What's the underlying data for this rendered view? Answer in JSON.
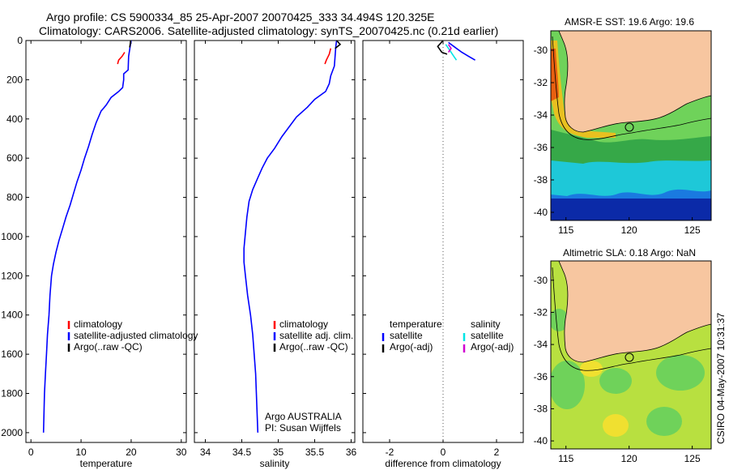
{
  "title": {
    "line1": "Argo profile: CS 5900334_85 25-Apr-2007 20070425_333 34.494S 120.325E",
    "line2": "Climatology: CARS2006. Satellite-adjusted climatology: synTS_20070425.nc (0.21d earlier)"
  },
  "stamp": "CSIRO 04-May-2007 10:31:37",
  "colors": {
    "climatology": "#ff0000",
    "satellite": "#0000ff",
    "argo": "#000000",
    "sal_satellite": "#00e5e5",
    "sal_argo": "#d000d0",
    "zero_line": "#555555",
    "land": "#f7c6a0"
  },
  "chart_data": [
    {
      "type": "line",
      "name": "temperature-profile",
      "xlabel": "temperature",
      "ylabel": "",
      "xlim": [
        -1,
        31
      ],
      "ylim": [
        2050,
        0
      ],
      "xticks": [
        0,
        10,
        20,
        30
      ],
      "yticks": [
        0,
        200,
        400,
        600,
        800,
        1000,
        1200,
        1400,
        1600,
        1800,
        2000
      ],
      "legend": {
        "position": "lower-right",
        "items": [
          {
            "label": "climatology",
            "color": "#ff0000"
          },
          {
            "label": "satellite-adjusted climatology",
            "color": "#0000ff"
          },
          {
            "label": "Argo(..raw -QC)",
            "color": "#000000"
          }
        ]
      },
      "series": [
        {
          "name": "satellite-adjusted climatology",
          "color": "#0000ff",
          "points": [
            [
              20.0,
              0
            ],
            [
              19.8,
              30
            ],
            [
              19.5,
              80
            ],
            [
              19.4,
              150
            ],
            [
              18.5,
              170
            ],
            [
              18.5,
              200
            ],
            [
              18.3,
              240
            ],
            [
              17.5,
              260
            ],
            [
              16.0,
              290
            ],
            [
              15.0,
              330
            ],
            [
              14.0,
              360
            ],
            [
              13.0,
              420
            ],
            [
              12.2,
              480
            ],
            [
              11.5,
              540
            ],
            [
              10.7,
              600
            ],
            [
              10.0,
              660
            ],
            [
              9.2,
              720
            ],
            [
              8.5,
              780
            ],
            [
              7.8,
              840
            ],
            [
              7.0,
              900
            ],
            [
              6.3,
              960
            ],
            [
              5.6,
              1020
            ],
            [
              5.0,
              1080
            ],
            [
              4.5,
              1140
            ],
            [
              4.1,
              1200
            ],
            [
              3.8,
              1300
            ],
            [
              3.6,
              1400
            ],
            [
              3.3,
              1500
            ],
            [
              3.1,
              1600
            ],
            [
              2.9,
              1700
            ],
            [
              2.7,
              1800
            ],
            [
              2.6,
              1900
            ],
            [
              2.5,
              2000
            ]
          ]
        },
        {
          "name": "climatology",
          "color": "#ff0000",
          "points": [
            [
              18.7,
              60
            ],
            [
              18.2,
              80
            ],
            [
              17.5,
              100
            ],
            [
              17.3,
              120
            ]
          ]
        },
        {
          "name": "Argo",
          "color": "#000000",
          "points": [
            [
              19.9,
              0
            ],
            [
              19.8,
              20
            ],
            [
              19.7,
              35
            ]
          ]
        }
      ]
    },
    {
      "type": "line",
      "name": "salinity-profile",
      "xlabel": "salinity",
      "ylabel": "",
      "xlim": [
        33.85,
        36.05
      ],
      "ylim": [
        2050,
        0
      ],
      "xticks": [
        34,
        34.5,
        35,
        35.5,
        36
      ],
      "xticklabels": [
        "34",
        "34.5",
        "35",
        "35.5",
        "36"
      ],
      "legend": {
        "position": "lower-right",
        "items": [
          {
            "label": "climatology",
            "color": "#ff0000"
          },
          {
            "label": "satellite adj. clim.",
            "color": "#0000ff"
          },
          {
            "label": "Argo(..raw -QC)",
            "color": "#000000"
          }
        ]
      },
      "annotation": {
        "line1": "Argo AUSTRALIA",
        "line2": "PI: Susan Wijffels"
      },
      "series": [
        {
          "name": "satellite adj. clim.",
          "color": "#0000ff",
          "points": [
            [
              35.8,
              0
            ],
            [
              35.79,
              30
            ],
            [
              35.78,
              80
            ],
            [
              35.77,
              130
            ],
            [
              35.72,
              180
            ],
            [
              35.7,
              220
            ],
            [
              35.65,
              260
            ],
            [
              35.5,
              300
            ],
            [
              35.4,
              340
            ],
            [
              35.25,
              390
            ],
            [
              35.15,
              440
            ],
            [
              35.05,
              490
            ],
            [
              34.95,
              550
            ],
            [
              34.85,
              600
            ],
            [
              34.78,
              650
            ],
            [
              34.72,
              700
            ],
            [
              34.65,
              760
            ],
            [
              34.6,
              820
            ],
            [
              34.57,
              900
            ],
            [
              34.55,
              980
            ],
            [
              34.53,
              1060
            ],
            [
              34.53,
              1130
            ],
            [
              34.55,
              1200
            ],
            [
              34.58,
              1300
            ],
            [
              34.62,
              1400
            ],
            [
              34.65,
              1500
            ],
            [
              34.67,
              1600
            ],
            [
              34.69,
              1700
            ],
            [
              34.7,
              1800
            ],
            [
              34.71,
              1900
            ],
            [
              34.72,
              2000
            ]
          ]
        },
        {
          "name": "climatology",
          "color": "#ff0000",
          "points": [
            [
              35.72,
              40
            ],
            [
              35.7,
              70
            ],
            [
              35.66,
              100
            ],
            [
              35.64,
              120
            ]
          ]
        },
        {
          "name": "Argo",
          "color": "#000000",
          "points": [
            [
              35.8,
              0
            ],
            [
              35.85,
              20
            ],
            [
              35.78,
              40
            ]
          ]
        }
      ]
    },
    {
      "type": "line",
      "name": "difference-profile",
      "xlabel": "difference from climatology",
      "ylabel": "",
      "xlim": [
        -3,
        3
      ],
      "ylim": [
        2050,
        0
      ],
      "xticks": [
        -2,
        0,
        2
      ],
      "legend": {
        "position": "lower",
        "items": [
          {
            "label": "temperature",
            "color": ""
          },
          {
            "label": "satellite",
            "color": "#0000ff"
          },
          {
            "label": "Argo(-adj)",
            "color": "#000000"
          },
          {
            "label": "salinity",
            "color": ""
          },
          {
            "label": "satellite",
            "color": "#00e5e5"
          },
          {
            "label": "Argo(-adj)",
            "color": "#d000d0"
          }
        ]
      },
      "series": [
        {
          "name": "temperature satellite",
          "color": "#0000ff",
          "points": [
            [
              0.2,
              10
            ],
            [
              0.3,
              20
            ],
            [
              0.5,
              40
            ],
            [
              0.7,
              60
            ],
            [
              0.95,
              80
            ],
            [
              1.2,
              100
            ]
          ]
        },
        {
          "name": "temperature Argo",
          "color": "#000000",
          "points": [
            [
              0.0,
              0
            ],
            [
              -0.2,
              30
            ],
            [
              -0.05,
              60
            ],
            [
              0.15,
              70
            ]
          ]
        },
        {
          "name": "salinity satellite",
          "color": "#00e5e5",
          "points": [
            [
              0.1,
              20
            ],
            [
              0.25,
              50
            ],
            [
              0.4,
              80
            ],
            [
              0.5,
              100
            ]
          ]
        },
        {
          "name": "salinity Argo",
          "color": "#d000d0",
          "points": [
            [
              0.2,
              20
            ],
            [
              0.3,
              40
            ],
            [
              0.2,
              60
            ]
          ]
        }
      ]
    },
    {
      "type": "heatmap",
      "name": "sst-map",
      "title": "AMSR-E SST: 19.6  Argo: 19.6",
      "xlim": [
        113.8,
        126.5
      ],
      "ylim": [
        -40.5,
        -28.8
      ],
      "xticks": [
        115,
        120,
        125
      ],
      "yticks": [
        -30,
        -32,
        -34,
        -36,
        -38,
        -40
      ],
      "marker": {
        "lon": 120.325,
        "lat": -34.494
      }
    },
    {
      "type": "heatmap",
      "name": "sla-map",
      "title": "Altimetric SLA: 0.18  Argo: NaN",
      "xlim": [
        113.8,
        126.5
      ],
      "ylim": [
        -40.5,
        -28.8
      ],
      "xticks": [
        115,
        120,
        125
      ],
      "yticks": [
        -30,
        -32,
        -34,
        -36,
        -38,
        -40
      ],
      "marker": {
        "lon": 120.325,
        "lat": -34.494
      }
    }
  ]
}
